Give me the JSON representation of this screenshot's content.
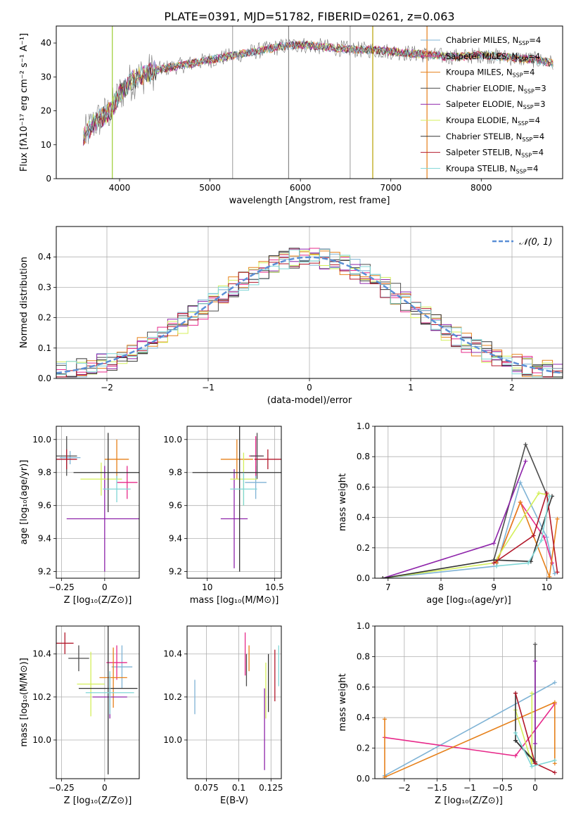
{
  "figure_title": "PLATE=0391, MJD=51782, FIBERID=0261, z=0.063",
  "model_colors": [
    "#7fb3d5",
    "#e7298a",
    "#e6801a",
    "#4d4d4d",
    "#8e24aa",
    "#d4ef5a",
    "#333333",
    "#b2182b",
    "#7fd6d6"
  ],
  "chart_data": [
    {
      "id": "spectrum",
      "type": "line",
      "xlabel": "wavelength [Angstrom, rest frame]",
      "ylabel": "Flux [f$_\\lambda$10$^{-17}$ erg cm$^{-2}$ s$^{-1}$ A$^{-1}$]",
      "ylabel_display": "Flux [fλ10⁻¹⁷ erg cm⁻² s⁻¹ A⁻¹]",
      "xlim": [
        3300,
        8900
      ],
      "ylim": [
        0,
        45
      ],
      "xticks": [
        4000,
        5000,
        6000,
        7000,
        8000
      ],
      "yticks": [
        0,
        10,
        20,
        30,
        40
      ],
      "legend": [
        "Chabrier MILES, N_SSP=4",
        "Salpeter MILES, N_SSP=4",
        "Kroupa MILES, N_SSP=4",
        "Chabrier ELODIE, N_SSP=3",
        "Salpeter ELODIE, N_SSP=3",
        "Kroupa ELODIE, N_SSP=4",
        "Chabrier STELIB, N_SSP=4",
        "Salpeter STELIB, N_SSP=4",
        "Kroupa STELIB, N_SSP=4"
      ],
      "legend_display": [
        "Chabrier MILES, N$_{SSP}$=4",
        "Salpeter MILES, N$_{SSP}$=4",
        "Kroupa MILES, N$_{SSP}$=4",
        "Chabrier ELODIE, N$_{SSP}$=3",
        "Salpeter ELODIE, N$_{SSP}$=3",
        "Kroupa ELODIE, N$_{SSP}$=4",
        "Chabrier STELIB, N$_{SSP}$=4",
        "Salpeter STELIB, N$_{SSP}$=4",
        "Kroupa STELIB, N$_{SSP}$=4"
      ],
      "legend_placement": "upper right",
      "continuum": {
        "x": [
          3600,
          3700,
          3800,
          3900,
          4000,
          4100,
          4200,
          4400,
          4600,
          4800,
          5000,
          5200,
          5400,
          5600,
          5800,
          6000,
          6200,
          6400,
          6600,
          6800,
          7000,
          7200,
          7400,
          7600,
          7800,
          8000,
          8200,
          8400,
          8600,
          8800
        ],
        "y": [
          12,
          16,
          18,
          20,
          25,
          28,
          30,
          32,
          33,
          34,
          35,
          36,
          37,
          38,
          39,
          39.5,
          39,
          38.5,
          38,
          38,
          37.5,
          37,
          36.5,
          36,
          36,
          36.5,
          36,
          35.5,
          35,
          34
        ]
      },
      "grid": false
    },
    {
      "id": "residual-distribution",
      "type": "line",
      "xlabel": "(data-model)/error",
      "ylabel": "Normed distribution",
      "xlim": [
        -2.5,
        2.5
      ],
      "ylim": [
        0,
        0.5
      ],
      "xticks": [
        -2,
        -1,
        0,
        1,
        2
      ],
      "yticks": [
        0.0,
        0.1,
        0.2,
        0.3,
        0.4
      ],
      "reference_curve": {
        "name": "𝒩(0, 1)",
        "mean": 0,
        "sigma": 1
      },
      "legend_placement": "upper right",
      "grid": true
    },
    {
      "id": "age-vs-Z",
      "type": "scatter",
      "xlabel": "Z [log₁₀(Z/Z⊙)]",
      "ylabel": "age  [log₁₀(age/yr)]",
      "xlim": [
        -0.28,
        0.2
      ],
      "ylim": [
        9.16,
        10.08
      ],
      "xticks": [
        -0.25,
        0.0
      ],
      "yticks": [
        9.2,
        9.4,
        9.6,
        9.8,
        10.0
      ],
      "points": [
        {
          "x": -0.2,
          "y": 9.89,
          "xerr": 0.06,
          "yerr": 0.04
        },
        {
          "x": 0.13,
          "y": 9.74,
          "xerr": 0.06,
          "yerr": 0.1
        },
        {
          "x": 0.07,
          "y": 9.88,
          "xerr": 0.07,
          "yerr": 0.12
        },
        {
          "x": -0.22,
          "y": 9.9,
          "xerr": 0.06,
          "yerr": 0.12
        },
        {
          "x": 0.0,
          "y": 9.52,
          "xerr": 0.22,
          "yerr": 0.32
        },
        {
          "x": -0.02,
          "y": 9.76,
          "xerr": 0.12,
          "yerr": 0.1
        },
        {
          "x": 0.02,
          "y": 9.8,
          "xerr": 0.2,
          "yerr": 0.24
        },
        {
          "x": -0.22,
          "y": 9.88,
          "xerr": 0.06,
          "yerr": 0.06
        },
        {
          "x": 0.07,
          "y": 9.7,
          "xerr": 0.08,
          "yerr": 0.08
        }
      ],
      "grid": true
    },
    {
      "id": "age-vs-mass",
      "type": "scatter",
      "xlabel": "mass [log₁₀(M/M⊙)]",
      "ylabel": "",
      "xlim": [
        9.85,
        10.55
      ],
      "ylim": [
        9.16,
        10.08
      ],
      "xticks": [
        10.0,
        10.5
      ],
      "yticks": [
        9.2,
        9.4,
        9.6,
        9.8,
        10.0
      ],
      "points": [
        {
          "x": 10.36,
          "y": 9.74,
          "xerr": 0.08,
          "yerr": 0.1
        },
        {
          "x": 10.36,
          "y": 9.9,
          "xerr": 0.05,
          "yerr": 0.12
        },
        {
          "x": 10.22,
          "y": 9.88,
          "xerr": 0.12,
          "yerr": 0.12
        },
        {
          "x": 10.37,
          "y": 9.9,
          "xerr": 0.05,
          "yerr": 0.14
        },
        {
          "x": 10.2,
          "y": 9.52,
          "xerr": 0.1,
          "yerr": 0.3
        },
        {
          "x": 10.27,
          "y": 9.76,
          "xerr": 0.1,
          "yerr": 0.16
        },
        {
          "x": 10.24,
          "y": 9.8,
          "xerr": 0.35,
          "yerr": 0.6
        },
        {
          "x": 10.45,
          "y": 9.88,
          "xerr": 0.1,
          "yerr": 0.06
        },
        {
          "x": 10.27,
          "y": 9.7,
          "xerr": 0.1,
          "yerr": 0.1
        }
      ],
      "grid": true
    },
    {
      "id": "mass-weight-vs-age",
      "type": "line",
      "xlabel": "age  [log₁₀(age/yr)]",
      "ylabel": "mass weight",
      "xlim": [
        6.75,
        10.3
      ],
      "ylim": [
        0,
        1.0
      ],
      "xticks": [
        7,
        8,
        9,
        10
      ],
      "yticks": [
        0.0,
        0.2,
        0.4,
        0.6,
        0.8,
        1.0
      ],
      "series": [
        {
          "x": [
            6.9,
            9.05,
            9.5,
            10.0,
            10.15
          ],
          "y": [
            0.0,
            0.08,
            0.63,
            0.27,
            0.03
          ]
        },
        {
          "x": [
            9.05,
            9.5,
            9.95,
            10.1
          ],
          "y": [
            0.1,
            0.5,
            0.27,
            0.1
          ]
        },
        {
          "x": [
            9.05,
            9.5,
            10.05,
            10.2
          ],
          "y": [
            0.1,
            0.5,
            0.01,
            0.39
          ]
        },
        {
          "x": [
            9.0,
            9.6,
            10.0
          ],
          "y": [
            0.12,
            0.88,
            0.55
          ]
        },
        {
          "x": [
            6.9,
            9.0,
            9.6
          ],
          "y": [
            0.0,
            0.23,
            0.77
          ]
        },
        {
          "x": [
            6.9,
            9.0,
            9.85,
            10.0
          ],
          "y": [
            0.0,
            0.1,
            0.56,
            0.55
          ]
        },
        {
          "x": [
            6.9,
            9.0,
            9.7,
            10.1
          ],
          "y": [
            0.0,
            0.12,
            0.11,
            0.54
          ]
        },
        {
          "x": [
            9.0,
            9.75,
            10.0,
            10.2
          ],
          "y": [
            0.1,
            0.28,
            0.56,
            0.04
          ]
        },
        {
          "x": [
            9.05,
            9.65,
            9.9,
            10.05
          ],
          "y": [
            0.08,
            0.1,
            0.25,
            0.54
          ]
        }
      ],
      "grid": true
    },
    {
      "id": "mass-vs-Z",
      "type": "scatter",
      "xlabel": "Z [log₁₀(Z/Z⊙)]",
      "ylabel": "mass [log₁₀(M/M⊙)]",
      "xlim": [
        -0.28,
        0.2
      ],
      "ylim": [
        9.82,
        10.53
      ],
      "xticks": [
        -0.25,
        0.0
      ],
      "yticks": [
        10.0,
        10.2,
        10.4
      ],
      "points": [
        {
          "x": 0.1,
          "y": 10.34,
          "xerr": 0.06,
          "yerr": 0.1
        },
        {
          "x": 0.07,
          "y": 10.36,
          "xerr": 0.06,
          "yerr": 0.08
        },
        {
          "x": 0.05,
          "y": 10.29,
          "xerr": 0.08,
          "yerr": 0.14
        },
        {
          "x": -0.15,
          "y": 10.38,
          "xerr": 0.06,
          "yerr": 0.06
        },
        {
          "x": 0.03,
          "y": 10.2,
          "xerr": 0.1,
          "yerr": 0.1
        },
        {
          "x": -0.08,
          "y": 10.26,
          "xerr": 0.08,
          "yerr": 0.15
        },
        {
          "x": 0.02,
          "y": 10.24,
          "xerr": 0.17,
          "yerr": 0.4
        },
        {
          "x": -0.23,
          "y": 10.45,
          "xerr": 0.05,
          "yerr": 0.05
        },
        {
          "x": 0.03,
          "y": 10.22,
          "xerr": 0.14,
          "yerr": 0.1
        }
      ],
      "grid": true
    },
    {
      "id": "mass-vs-EBV",
      "type": "scatter",
      "xlabel": "E(B-V)",
      "ylabel": "",
      "xlim": [
        0.06,
        0.133
      ],
      "ylim": [
        9.82,
        10.53
      ],
      "xticks": [
        0.075,
        0.1,
        0.125
      ],
      "yticks": [
        10.0,
        10.2,
        10.4
      ],
      "vertical_bars": [
        {
          "x": 0.066,
          "y": [
            10.12,
            10.28
          ]
        },
        {
          "x": 0.105,
          "y": [
            10.3,
            10.5
          ]
        },
        {
          "x": 0.108,
          "y": [
            10.32,
            10.44
          ]
        },
        {
          "x": 0.106,
          "y": [
            10.25,
            10.4
          ]
        },
        {
          "x": 0.12,
          "y": [
            9.86,
            10.24
          ]
        },
        {
          "x": 0.121,
          "y": [
            10.1,
            10.36
          ]
        },
        {
          "x": 0.123,
          "y": [
            10.13,
            10.4
          ]
        },
        {
          "x": 0.128,
          "y": [
            10.18,
            10.42
          ]
        },
        {
          "x": 0.131,
          "y": [
            10.25,
            10.44
          ]
        }
      ],
      "grid": true
    },
    {
      "id": "mass-weight-vs-Z",
      "type": "line",
      "xlabel": "Z [log₁₀(Z/Z⊙)]",
      "ylabel": "mass weight",
      "xlim": [
        -2.45,
        0.42
      ],
      "ylim": [
        0,
        1.0
      ],
      "xticks": [
        -2.0,
        -1.5,
        -1.0,
        -0.5,
        0.0
      ],
      "yticks": [
        0.0,
        0.2,
        0.4,
        0.6,
        0.8,
        1.0
      ],
      "series": [
        {
          "x": [
            -2.3,
            0.3
          ],
          "y": [
            0.02,
            0.63
          ]
        },
        {
          "x": [
            -2.3,
            -0.3,
            0.3
          ],
          "y": [
            0.27,
            0.15,
            0.49
          ]
        },
        {
          "x": [
            -2.3,
            -2.3,
            0.3,
            0.3
          ],
          "y": [
            0.39,
            0.01,
            0.5,
            0.1
          ]
        },
        {
          "x": [
            -0.3,
            0.0,
            0.0
          ],
          "y": [
            0.25,
            0.1,
            0.88
          ]
        },
        {
          "x": [
            0.0,
            0.0
          ],
          "y": [
            0.23,
            0.77
          ]
        },
        {
          "x": [
            -0.3,
            -0.05,
            -0.05
          ],
          "y": [
            0.45,
            0.1,
            0.56
          ]
        },
        {
          "x": [
            -0.3,
            -0.3,
            0.0
          ],
          "y": [
            0.56,
            0.25,
            0.11
          ]
        },
        {
          "x": [
            -0.3,
            0.0,
            0.3
          ],
          "y": [
            0.56,
            0.1,
            0.04
          ]
        },
        {
          "x": [
            -0.3,
            -0.05,
            0.3
          ],
          "y": [
            0.3,
            0.08,
            0.12
          ]
        }
      ],
      "grid": true
    }
  ]
}
